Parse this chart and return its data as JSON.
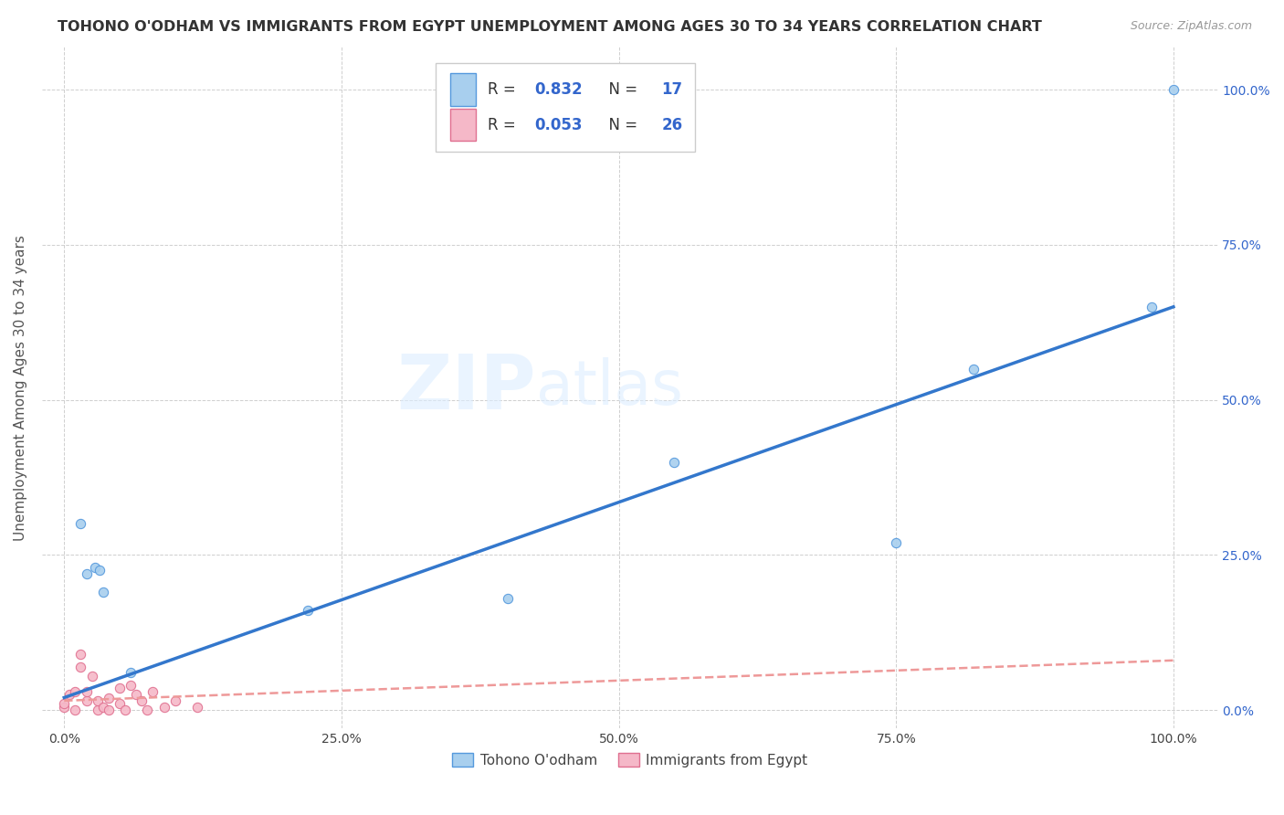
{
  "title": "TOHONO O'ODHAM VS IMMIGRANTS FROM EGYPT UNEMPLOYMENT AMONG AGES 30 TO 34 YEARS CORRELATION CHART",
  "source": "Source: ZipAtlas.com",
  "ylabel": "Unemployment Among Ages 30 to 34 years",
  "xtick_labels": [
    "0.0%",
    "25.0%",
    "50.0%",
    "75.0%",
    "100.0%"
  ],
  "ytick_labels": [
    "0.0%",
    "25.0%",
    "50.0%",
    "75.0%",
    "100.0%"
  ],
  "xtick_positions": [
    0,
    25,
    50,
    75,
    100
  ],
  "ytick_positions": [
    0,
    25,
    50,
    75,
    100
  ],
  "legend_bottom_labels": [
    "Tohono O'odham",
    "Immigrants from Egypt"
  ],
  "watermark_zip": "ZIP",
  "watermark_atlas": "atlas",
  "blue_color": "#a8cfee",
  "blue_edge_color": "#5599dd",
  "pink_color": "#f5b8c8",
  "pink_edge_color": "#e07090",
  "blue_line_color": "#3377cc",
  "pink_line_color": "#ee9999",
  "blue_dots": [
    [
      1.5,
      30.0
    ],
    [
      2.0,
      22.0
    ],
    [
      2.8,
      23.0
    ],
    [
      3.2,
      22.5
    ],
    [
      3.5,
      19.0
    ],
    [
      6.0,
      6.0
    ],
    [
      22.0,
      16.0
    ],
    [
      40.0,
      18.0
    ],
    [
      55.0,
      40.0
    ],
    [
      75.0,
      27.0
    ],
    [
      82.0,
      55.0
    ],
    [
      98.0,
      65.0
    ],
    [
      100.0,
      100.0
    ]
  ],
  "pink_dots": [
    [
      0.0,
      0.5
    ],
    [
      0.0,
      1.0
    ],
    [
      0.5,
      2.5
    ],
    [
      1.0,
      0.0
    ],
    [
      1.0,
      3.0
    ],
    [
      1.5,
      7.0
    ],
    [
      1.5,
      9.0
    ],
    [
      2.0,
      1.5
    ],
    [
      2.0,
      3.0
    ],
    [
      2.5,
      5.5
    ],
    [
      3.0,
      0.0
    ],
    [
      3.0,
      1.5
    ],
    [
      3.5,
      0.5
    ],
    [
      4.0,
      2.0
    ],
    [
      4.0,
      0.0
    ],
    [
      5.0,
      3.5
    ],
    [
      5.0,
      1.0
    ],
    [
      5.5,
      0.0
    ],
    [
      6.0,
      4.0
    ],
    [
      6.5,
      2.5
    ],
    [
      7.0,
      1.5
    ],
    [
      7.5,
      0.0
    ],
    [
      8.0,
      3.0
    ],
    [
      9.0,
      0.5
    ],
    [
      10.0,
      1.5
    ],
    [
      12.0,
      0.5
    ]
  ],
  "blue_line_x": [
    0,
    100
  ],
  "blue_line_y": [
    2.0,
    65.0
  ],
  "pink_line_x": [
    0,
    100
  ],
  "pink_line_y": [
    1.5,
    8.0
  ],
  "grid_color": "#bbbbbb",
  "background_color": "#ffffff",
  "title_fontsize": 11.5,
  "axis_label_fontsize": 11,
  "tick_fontsize": 10,
  "dot_size": 55,
  "xlim": [
    -2,
    104
  ],
  "ylim": [
    -3,
    107
  ]
}
